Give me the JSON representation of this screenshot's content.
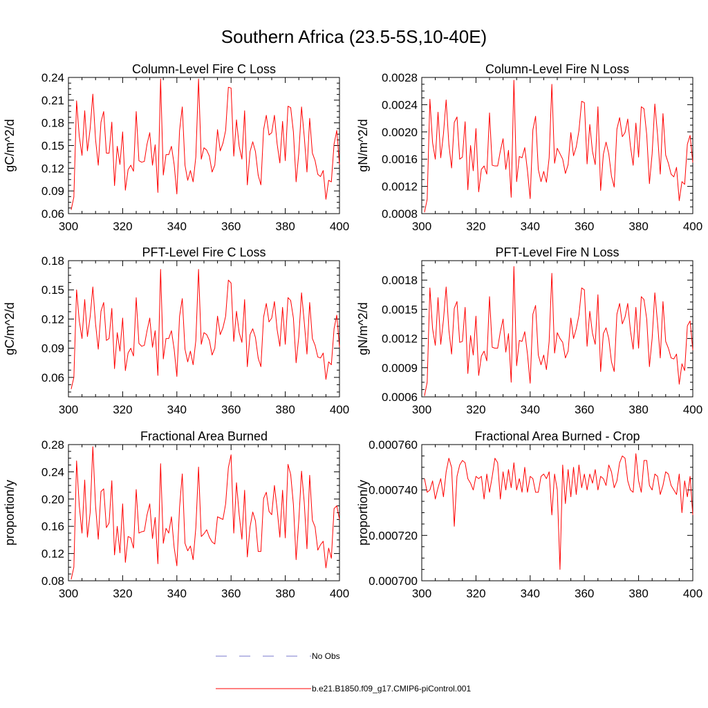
{
  "figure": {
    "title": "Southern Africa (23.5-5S,10-40E)",
    "series_color": "#ff0000",
    "obs_color": "#7777cc"
  },
  "legend": {
    "entries": [
      {
        "label": "No Obs",
        "style": "dashed",
        "color": "#7777cc"
      },
      {
        "label": "b.e21.B1850.f09_g17.CMIP6-piControl.001",
        "style": "solid",
        "color": "#ff0000"
      }
    ]
  },
  "chart_data": [
    {
      "type": "line",
      "title": "Column-Level Fire C Loss",
      "xlabel": "",
      "ylabel": "gC/m^2/d",
      "xlim": [
        300,
        400
      ],
      "ylim": [
        0.06,
        0.24
      ],
      "xticks": [
        300,
        320,
        340,
        360,
        380,
        400
      ],
      "xtick_labels": [
        "300",
        "320",
        "340",
        "360",
        "380",
        "400"
      ],
      "yticks": [
        0.06,
        0.09,
        0.12,
        0.15,
        0.18,
        0.21,
        0.24
      ],
      "ytick_labels": [
        "0.06",
        "0.09",
        "0.12",
        "0.15",
        "0.18",
        "0.21",
        "0.24"
      ],
      "series": [
        {
          "name": "b.e21.B1850.f09_g17.CMIP6-piControl.001",
          "x_start": 301,
          "values": [
            0.065,
            0.082,
            0.209,
            0.162,
            0.137,
            0.196,
            0.143,
            0.172,
            0.218,
            0.158,
            0.124,
            0.181,
            0.195,
            0.14,
            0.14,
            0.181,
            0.097,
            0.149,
            0.125,
            0.168,
            0.091,
            0.118,
            0.124,
            0.116,
            0.195,
            0.13,
            0.128,
            0.129,
            0.152,
            0.167,
            0.124,
            0.151,
            0.088,
            0.238,
            0.111,
            0.138,
            0.138,
            0.149,
            0.125,
            0.086,
            0.17,
            0.201,
            0.124,
            0.104,
            0.117,
            0.102,
            0.135,
            0.238,
            0.132,
            0.147,
            0.144,
            0.136,
            0.115,
            0.124,
            0.171,
            0.143,
            0.153,
            0.17,
            0.227,
            0.226,
            0.136,
            0.184,
            0.149,
            0.132,
            0.196,
            0.098,
            0.142,
            0.155,
            0.142,
            0.111,
            0.098,
            0.171,
            0.19,
            0.164,
            0.167,
            0.19,
            0.152,
            0.127,
            0.182,
            0.13,
            0.202,
            0.2,
            0.168,
            0.102,
            0.14,
            0.201,
            0.162,
            0.115,
            0.186,
            0.14,
            0.13,
            0.112,
            0.109,
            0.117,
            0.079,
            0.104,
            0.102,
            0.152,
            0.17,
            0.125
          ]
        }
      ]
    },
    {
      "type": "line",
      "title": "Column-Level Fire N Loss",
      "xlabel": "",
      "ylabel": "gN/m^2/d",
      "xlim": [
        300,
        400
      ],
      "ylim": [
        0.0008,
        0.0028
      ],
      "xticks": [
        300,
        320,
        340,
        360,
        380,
        400
      ],
      "xtick_labels": [
        "300",
        "320",
        "340",
        "360",
        "380",
        "400"
      ],
      "yticks": [
        0.0008,
        0.0012,
        0.0016,
        0.002,
        0.0024,
        0.0028
      ],
      "ytick_labels": [
        "0.0008",
        "0.0012",
        "0.0016",
        "0.0020",
        "0.0024",
        "0.0028"
      ],
      "series": [
        {
          "name": "b.e21.B1850.f09_g17.CMIP6-piControl.001",
          "x_start": 301,
          "values": [
            0.00082,
            0.00101,
            0.00248,
            0.00184,
            0.0016,
            0.00229,
            0.00162,
            0.00197,
            0.00247,
            0.00182,
            0.00147,
            0.00214,
            0.00222,
            0.0016,
            0.00163,
            0.00215,
            0.00115,
            0.0018,
            0.00143,
            0.00205,
            0.00112,
            0.00145,
            0.0015,
            0.00138,
            0.00228,
            0.00151,
            0.0015,
            0.0015,
            0.00172,
            0.0019,
            0.00145,
            0.00173,
            0.00104,
            0.00276,
            0.00127,
            0.00164,
            0.00162,
            0.00177,
            0.00143,
            0.00102,
            0.00203,
            0.00223,
            0.00145,
            0.00127,
            0.00142,
            0.00126,
            0.00162,
            0.0027,
            0.00154,
            0.00176,
            0.00168,
            0.0016,
            0.00139,
            0.00152,
            0.00199,
            0.00165,
            0.00178,
            0.00202,
            0.00245,
            0.00243,
            0.00153,
            0.00211,
            0.00171,
            0.00152,
            0.00237,
            0.00114,
            0.00167,
            0.00185,
            0.00168,
            0.00135,
            0.00119,
            0.00204,
            0.00221,
            0.00193,
            0.00199,
            0.00219,
            0.00179,
            0.00151,
            0.00213,
            0.00163,
            0.00237,
            0.00234,
            0.00196,
            0.00124,
            0.00168,
            0.00241,
            0.00196,
            0.00138,
            0.00227,
            0.00166,
            0.00154,
            0.00138,
            0.00134,
            0.00148,
            0.00099,
            0.00127,
            0.00123,
            0.00182,
            0.00195,
            0.00155
          ]
        }
      ]
    },
    {
      "type": "line",
      "title": "PFT-Level Fire C Loss",
      "xlabel": "",
      "ylabel": "gC/m^2/d",
      "xlim": [
        300,
        400
      ],
      "ylim": [
        0.04,
        0.18
      ],
      "xticks": [
        300,
        320,
        340,
        360,
        380,
        400
      ],
      "xtick_labels": [
        "300",
        "320",
        "340",
        "360",
        "380",
        "400"
      ],
      "yticks": [
        0.06,
        0.09,
        0.12,
        0.15,
        0.18
      ],
      "ytick_labels": [
        "0.06",
        "0.09",
        "0.12",
        "0.15",
        "0.18"
      ],
      "series": [
        {
          "name": "b.e21.B1850.f09_g17.CMIP6-piControl.001",
          "x_start": 301,
          "values": [
            0.048,
            0.06,
            0.15,
            0.118,
            0.1,
            0.14,
            0.102,
            0.122,
            0.153,
            0.115,
            0.089,
            0.128,
            0.137,
            0.098,
            0.1,
            0.131,
            0.069,
            0.106,
            0.087,
            0.121,
            0.067,
            0.085,
            0.09,
            0.082,
            0.142,
            0.095,
            0.092,
            0.093,
            0.108,
            0.121,
            0.091,
            0.108,
            0.062,
            0.171,
            0.079,
            0.1,
            0.1,
            0.108,
            0.089,
            0.061,
            0.123,
            0.141,
            0.089,
            0.076,
            0.087,
            0.073,
            0.098,
            0.171,
            0.094,
            0.106,
            0.104,
            0.098,
            0.083,
            0.09,
            0.123,
            0.104,
            0.111,
            0.123,
            0.16,
            0.157,
            0.097,
            0.128,
            0.106,
            0.096,
            0.14,
            0.071,
            0.104,
            0.11,
            0.101,
            0.08,
            0.071,
            0.122,
            0.136,
            0.117,
            0.121,
            0.138,
            0.109,
            0.092,
            0.132,
            0.094,
            0.142,
            0.139,
            0.121,
            0.075,
            0.102,
            0.147,
            0.117,
            0.084,
            0.137,
            0.1,
            0.093,
            0.081,
            0.08,
            0.085,
            0.058,
            0.076,
            0.073,
            0.11,
            0.124,
            0.091
          ]
        }
      ]
    },
    {
      "type": "line",
      "title": "PFT-Level Fire N Loss",
      "xlabel": "",
      "ylabel": "gN/m^2/d",
      "xlim": [
        300,
        400
      ],
      "ylim": [
        0.0006,
        0.002
      ],
      "xticks": [
        300,
        320,
        340,
        360,
        380,
        400
      ],
      "xtick_labels": [
        "300",
        "320",
        "340",
        "360",
        "380",
        "400"
      ],
      "yticks": [
        0.0006,
        0.0009,
        0.0012,
        0.0015,
        0.0018
      ],
      "ytick_labels": [
        "0.0006",
        "0.0009",
        "0.0012",
        "0.0015",
        "0.0018"
      ],
      "series": [
        {
          "name": "b.e21.B1850.f09_g17.CMIP6-piControl.001",
          "x_start": 301,
          "values": [
            0.00061,
            0.00075,
            0.00172,
            0.0013,
            0.00113,
            0.00162,
            0.00114,
            0.00139,
            0.00173,
            0.00129,
            0.00104,
            0.00151,
            0.00158,
            0.00116,
            0.00117,
            0.00152,
            0.00084,
            0.00123,
            0.00103,
            0.00143,
            0.00082,
            0.00102,
            0.00107,
            0.00097,
            0.00163,
            0.00111,
            0.0011,
            0.0011,
            0.00127,
            0.0014,
            0.00106,
            0.00125,
            0.00075,
            0.00194,
            0.00092,
            0.00118,
            0.00117,
            0.00127,
            0.00104,
            0.00074,
            0.00145,
            0.00154,
            0.00103,
            0.00093,
            0.00103,
            0.00088,
            0.00117,
            0.00187,
            0.00105,
            0.00126,
            0.0012,
            0.00116,
            0.001,
            0.00107,
            0.00141,
            0.0012,
            0.0013,
            0.00144,
            0.00172,
            0.0017,
            0.00112,
            0.00148,
            0.00125,
            0.00114,
            0.00165,
            0.00086,
            0.00125,
            0.00131,
            0.0012,
            0.00096,
            0.00086,
            0.00145,
            0.00156,
            0.00135,
            0.00142,
            0.00156,
            0.00128,
            0.00109,
            0.00152,
            0.0011,
            0.00163,
            0.0016,
            0.0014,
            0.00091,
            0.0012,
            0.00167,
            0.00136,
            0.001,
            0.00158,
            0.00117,
            0.0011,
            0.001,
            0.00099,
            0.00104,
            0.00073,
            0.00094,
            0.00087,
            0.00133,
            0.00138,
            0.00108
          ]
        }
      ]
    },
    {
      "type": "line",
      "title": "Fractional Area Burned",
      "xlabel": "",
      "ylabel": "proportion/y",
      "xlim": [
        300,
        400
      ],
      "ylim": [
        0.08,
        0.28
      ],
      "xticks": [
        300,
        320,
        340,
        360,
        380,
        400
      ],
      "xtick_labels": [
        "300",
        "320",
        "340",
        "360",
        "380",
        "400"
      ],
      "yticks": [
        0.08,
        0.12,
        0.16,
        0.2,
        0.24,
        0.28
      ],
      "ytick_labels": [
        "0.08",
        "0.12",
        "0.16",
        "0.20",
        "0.24",
        "0.28"
      ],
      "series": [
        {
          "name": "b.e21.B1850.f09_g17.CMIP6-piControl.001",
          "x_start": 301,
          "values": [
            0.082,
            0.1,
            0.256,
            0.19,
            0.15,
            0.228,
            0.144,
            0.18,
            0.277,
            0.19,
            0.141,
            0.211,
            0.215,
            0.158,
            0.165,
            0.227,
            0.118,
            0.16,
            0.121,
            0.193,
            0.107,
            0.145,
            0.143,
            0.128,
            0.214,
            0.15,
            0.152,
            0.153,
            0.177,
            0.193,
            0.142,
            0.173,
            0.105,
            0.252,
            0.135,
            0.157,
            0.15,
            0.174,
            0.129,
            0.102,
            0.188,
            0.237,
            0.135,
            0.124,
            0.131,
            0.111,
            0.158,
            0.247,
            0.145,
            0.149,
            0.155,
            0.144,
            0.137,
            0.134,
            0.174,
            0.172,
            0.17,
            0.193,
            0.246,
            0.265,
            0.15,
            0.224,
            0.177,
            0.141,
            0.213,
            0.115,
            0.159,
            0.181,
            0.168,
            0.123,
            0.123,
            0.201,
            0.21,
            0.182,
            0.177,
            0.22,
            0.185,
            0.144,
            0.213,
            0.143,
            0.251,
            0.236,
            0.192,
            0.111,
            0.169,
            0.241,
            0.195,
            0.127,
            0.235,
            0.169,
            0.159,
            0.125,
            0.133,
            0.138,
            0.099,
            0.128,
            0.113,
            0.186,
            0.19,
            0.17
          ]
        }
      ]
    },
    {
      "type": "line",
      "title": "Fractional Area Burned - Crop",
      "xlabel": "",
      "ylabel": "proportion/y",
      "xlim": [
        300,
        400
      ],
      "ylim": [
        0.0007,
        0.00076
      ],
      "xticks": [
        300,
        320,
        340,
        360,
        380,
        400
      ],
      "xtick_labels": [
        "300",
        "320",
        "340",
        "360",
        "380",
        "400"
      ],
      "yticks": [
        0.0007,
        0.00072,
        0.00074,
        0.00076
      ],
      "ytick_labels": [
        "0.000700",
        "0.000720",
        "0.000740",
        "0.000760"
      ],
      "series": [
        {
          "name": "b.e21.B1850.f09_g17.CMIP6-piControl.001",
          "x_start": 301,
          "values": [
            0.000745,
            0.000739,
            0.00074,
            0.000744,
            0.000736,
            0.000741,
            0.000745,
            0.000737,
            0.000748,
            0.000754,
            0.00075,
            0.000724,
            0.000746,
            0.000751,
            0.000753,
            0.000752,
            0.000745,
            0.000743,
            0.00074,
            0.000746,
            0.000745,
            0.000746,
            0.000736,
            0.000747,
            0.000739,
            0.000746,
            0.000754,
            0.000752,
            0.000736,
            0.000748,
            0.00074,
            0.000749,
            0.000741,
            0.000752,
            0.00074,
            0.000745,
            0.000739,
            0.00075,
            0.000739,
            0.000746,
            0.000745,
            0.000739,
            0.000739,
            0.000746,
            0.000747,
            0.000745,
            0.000748,
            0.000729,
            0.000747,
            0.00074,
            0.000705,
            0.000751,
            0.000734,
            0.000749,
            0.000737,
            0.00075,
            0.000738,
            0.000751,
            0.000741,
            0.000747,
            0.00074,
            0.000747,
            0.000743,
            0.000749,
            0.00074,
            0.000746,
            0.000745,
            0.000742,
            0.000751,
            0.000748,
            0.000741,
            0.000744,
            0.000752,
            0.000755,
            0.000754,
            0.000744,
            0.00074,
            0.000739,
            0.000756,
            0.000744,
            0.000739,
            0.000753,
            0.000753,
            0.000742,
            0.00074,
            0.000747,
            0.000746,
            0.000738,
            0.000742,
            0.000748,
            0.000747,
            0.000742,
            0.00074,
            0.000738,
            0.000747,
            0.00073,
            0.000744,
            0.000737,
            0.000746,
            0.000729
          ]
        }
      ]
    }
  ]
}
